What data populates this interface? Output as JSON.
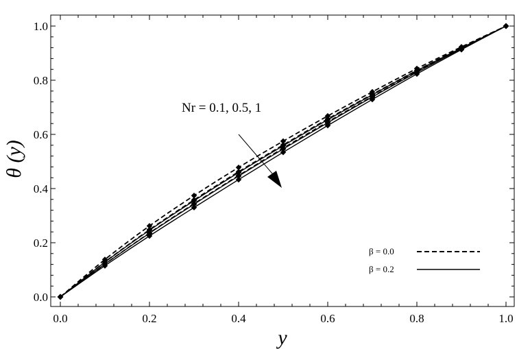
{
  "chart_data": {
    "type": "line",
    "xlabel": "y",
    "ylabel": "θ (y)",
    "xlim": [
      0,
      1
    ],
    "ylim": [
      0,
      1
    ],
    "x_ticks": [
      "0.0",
      "0.2",
      "0.4",
      "0.6",
      "0.8",
      "1.0"
    ],
    "y_ticks": [
      "0.0",
      "0.2",
      "0.4",
      "0.6",
      "0.8",
      "1.0"
    ],
    "grid": false,
    "legend_position": "bottom-right",
    "annotation": {
      "text": "Nr = 0.1, 0.5, 1"
    },
    "legend": [
      {
        "label": "β = 0.0",
        "style": "dashed"
      },
      {
        "label": "β = 0.2",
        "style": "solid"
      }
    ],
    "series": [
      {
        "style": "dashed",
        "points": [
          [
            0,
            0
          ],
          [
            0.1,
            0.138
          ],
          [
            0.2,
            0.262
          ],
          [
            0.3,
            0.374
          ],
          [
            0.4,
            0.478
          ],
          [
            0.5,
            0.575
          ],
          [
            0.6,
            0.668
          ],
          [
            0.7,
            0.757
          ],
          [
            0.8,
            0.843
          ],
          [
            0.9,
            0.923
          ],
          [
            1,
            1
          ]
        ]
      },
      {
        "style": "dashed",
        "points": [
          [
            0,
            0
          ],
          [
            0.1,
            0.129
          ],
          [
            0.2,
            0.248
          ],
          [
            0.3,
            0.358
          ],
          [
            0.4,
            0.462
          ],
          [
            0.5,
            0.561
          ],
          [
            0.6,
            0.657
          ],
          [
            0.7,
            0.748
          ],
          [
            0.8,
            0.836
          ],
          [
            0.9,
            0.92
          ],
          [
            1,
            1
          ]
        ]
      },
      {
        "style": "dashed",
        "points": [
          [
            0,
            0
          ],
          [
            0.1,
            0.121
          ],
          [
            0.2,
            0.236
          ],
          [
            0.3,
            0.344
          ],
          [
            0.4,
            0.448
          ],
          [
            0.5,
            0.549
          ],
          [
            0.6,
            0.646
          ],
          [
            0.7,
            0.74
          ],
          [
            0.8,
            0.831
          ],
          [
            0.9,
            0.917
          ],
          [
            1,
            1
          ]
        ]
      },
      {
        "style": "solid",
        "points": [
          [
            0,
            0
          ],
          [
            0.1,
            0.128
          ],
          [
            0.2,
            0.246
          ],
          [
            0.3,
            0.355
          ],
          [
            0.4,
            0.459
          ],
          [
            0.5,
            0.558
          ],
          [
            0.6,
            0.654
          ],
          [
            0.7,
            0.746
          ],
          [
            0.8,
            0.835
          ],
          [
            0.9,
            0.919
          ],
          [
            1,
            1
          ]
        ]
      },
      {
        "style": "solid",
        "points": [
          [
            0,
            0
          ],
          [
            0.1,
            0.121
          ],
          [
            0.2,
            0.235
          ],
          [
            0.3,
            0.342
          ],
          [
            0.4,
            0.446
          ],
          [
            0.5,
            0.546
          ],
          [
            0.6,
            0.643
          ],
          [
            0.7,
            0.738
          ],
          [
            0.8,
            0.829
          ],
          [
            0.9,
            0.916
          ],
          [
            1,
            1
          ]
        ]
      },
      {
        "style": "solid",
        "points": [
          [
            0,
            0
          ],
          [
            0.1,
            0.115
          ],
          [
            0.2,
            0.225
          ],
          [
            0.3,
            0.33
          ],
          [
            0.4,
            0.433
          ],
          [
            0.5,
            0.534
          ],
          [
            0.6,
            0.633
          ],
          [
            0.7,
            0.729
          ],
          [
            0.8,
            0.823
          ],
          [
            0.9,
            0.913
          ],
          [
            1,
            1
          ]
        ]
      }
    ]
  }
}
